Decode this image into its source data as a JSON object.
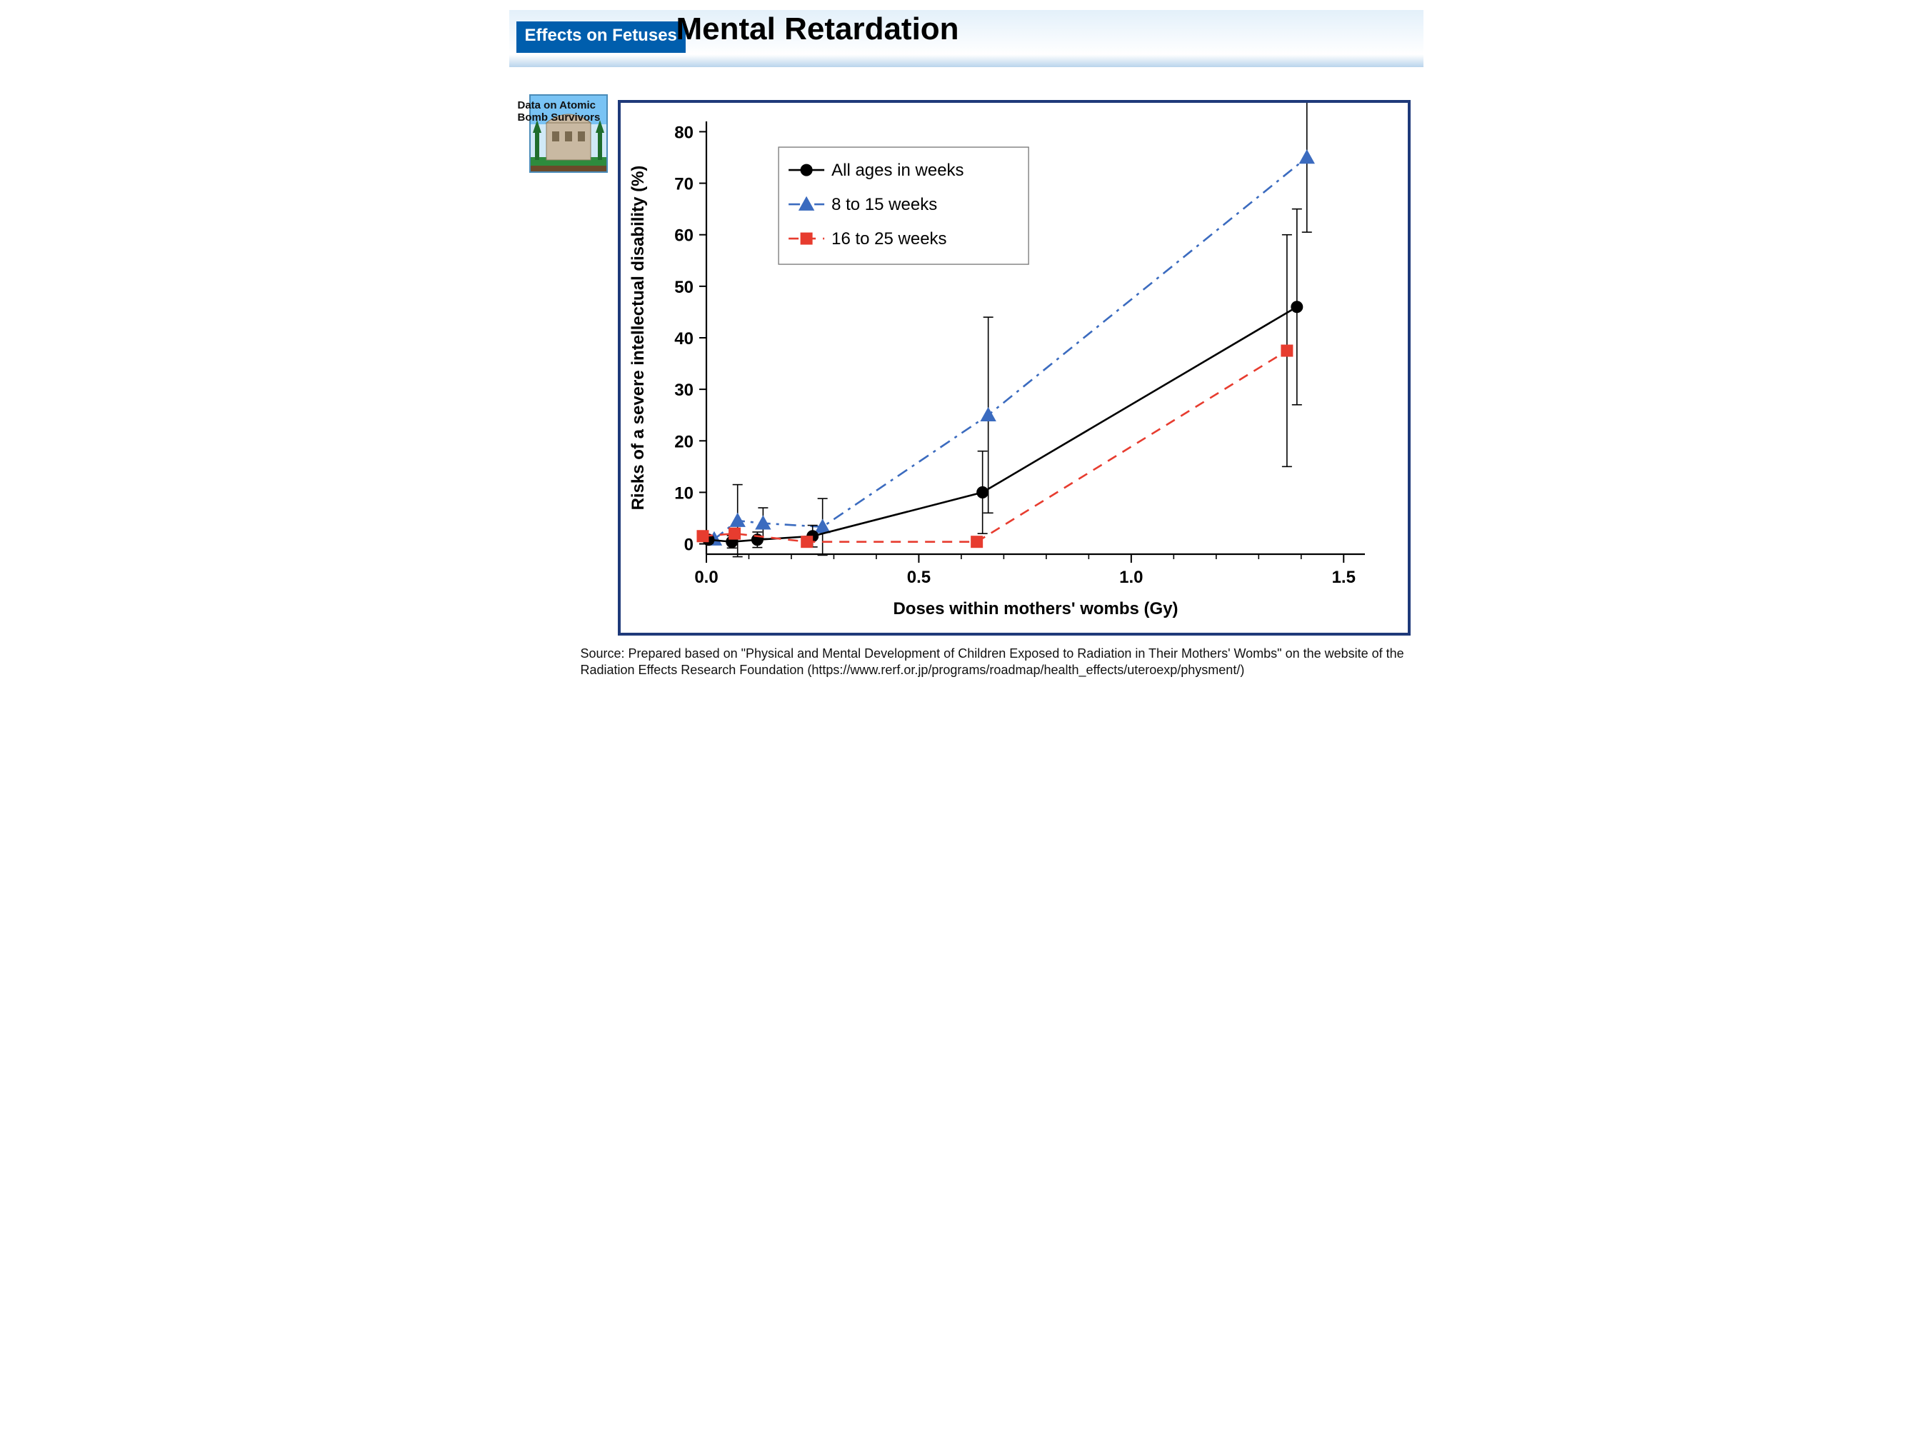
{
  "header": {
    "badge_label": "Effects on Fetuses",
    "badge_bg": "#005ead",
    "badge_color": "#ffffff",
    "title": "Mental Retardation",
    "title_color": "#000000"
  },
  "side_note": {
    "line1": "Data on Atomic",
    "line2": "Bomb Survivors"
  },
  "source": {
    "text": "Source: Prepared based on \"Physical and Mental Development of Children Exposed to Radiation in Their Mothers' Wombs\" on the website of the Radiation Effects Research Foundation (https://www.rerf.or.jp/programs/roadmap/health_effects/uteroexp/physment/)"
  },
  "chart": {
    "type": "line-scatter-errorbar",
    "background_color": "#ffffff",
    "plot_border_color": "#000000",
    "plot_border_width": 2.2,
    "xlabel": "Doses within mothers' wombs (Gy)",
    "ylabel": "Risks of a severe intellectual disability (%)",
    "label_fontsize": 24,
    "tick_fontsize": 24,
    "xlim": [
      0.0,
      1.55
    ],
    "ylim": [
      -2,
      82
    ],
    "xtick_positions": [
      0.0,
      0.5,
      1.0,
      1.5
    ],
    "xtick_labels": [
      "0.0",
      "0.5",
      "1.0",
      "1.5"
    ],
    "xtick_minor": [
      0.1,
      0.2,
      0.3,
      0.4,
      0.6,
      0.7,
      0.8,
      0.9,
      1.1,
      1.2,
      1.3,
      1.4
    ],
    "ytick_positions": [
      0,
      10,
      20,
      30,
      40,
      50,
      60,
      70,
      80
    ],
    "legend": {
      "x": 0.17,
      "y_top": 77,
      "box_border": "#7f7f7f",
      "box_fill": "#ffffff",
      "fontsize": 24,
      "entries": [
        {
          "label": "All ages in weeks",
          "series_key": "all"
        },
        {
          "label": "8 to 15 weeks",
          "series_key": "w8_15"
        },
        {
          "label": "16 to 25 weeks",
          "series_key": "w16_25"
        }
      ]
    },
    "series": {
      "all": {
        "color": "#000000",
        "marker": "circle",
        "marker_size": 8,
        "dash": "solid",
        "line_width": 2.6,
        "data": [
          {
            "x": 0.005,
            "y": 0.8,
            "err": 0.7
          },
          {
            "x": 0.06,
            "y": 0.4,
            "err": 1.2
          },
          {
            "x": 0.12,
            "y": 0.8,
            "err": 1.5
          },
          {
            "x": 0.25,
            "y": 1.5,
            "err": 2.1
          },
          {
            "x": 0.65,
            "y": 10.0,
            "err": 8.0
          },
          {
            "x": 1.39,
            "y": 46.0,
            "err": 19.0
          }
        ]
      },
      "w8_15": {
        "color": "#3b6bbf",
        "marker": "triangle",
        "marker_size": 9,
        "dash": "dashdot",
        "line_width": 2.6,
        "data": [
          {
            "x": 0.005,
            "y": 0.9,
            "err": null
          },
          {
            "x": 0.06,
            "y": 4.5,
            "err": 7.0
          },
          {
            "x": 0.12,
            "y": 4.0,
            "err": 3.0
          },
          {
            "x": 0.26,
            "y": 3.3,
            "err": 5.5
          },
          {
            "x": 0.65,
            "y": 25.0,
            "err": 19.0
          },
          {
            "x": 1.4,
            "y": 75.0,
            "err": 14.5
          }
        ]
      },
      "w16_25": {
        "color": "#e73c2f",
        "marker": "square",
        "marker_size": 8,
        "dash": "dashed",
        "line_width": 2.6,
        "data": [
          {
            "x": 0.005,
            "y": 1.5,
            "err": null
          },
          {
            "x": 0.08,
            "y": 2.0,
            "err": null
          },
          {
            "x": 0.25,
            "y": 0.4,
            "err": null
          },
          {
            "x": 0.65,
            "y": 0.4,
            "err": null
          },
          {
            "x": 1.38,
            "y": 37.5,
            "err": 22.5
          }
        ]
      }
    }
  }
}
